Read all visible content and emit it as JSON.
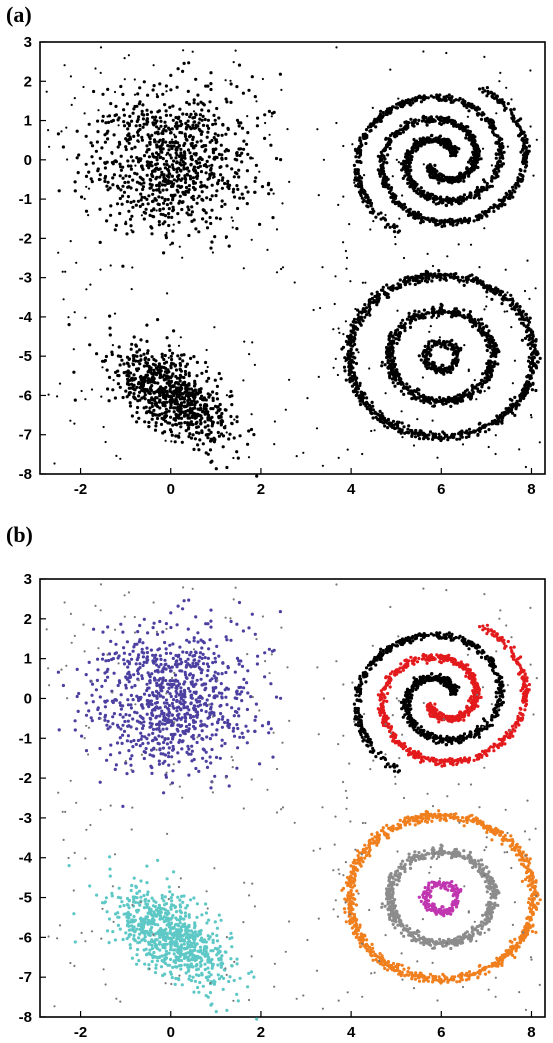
{
  "chart_data": [
    {
      "type": "scatter",
      "panel_label": "(a)",
      "xlim": [
        -2.9,
        8.3
      ],
      "ylim": [
        -8,
        3
      ],
      "xticks": [
        -2,
        0,
        2,
        4,
        6,
        8
      ],
      "yticks": [
        3,
        2,
        1,
        0,
        -1,
        -2,
        -3,
        -4,
        -5,
        -6,
        -7,
        -8
      ],
      "grid": false,
      "colors": {
        "all": "#000000",
        "axis": "#000000"
      },
      "series": [
        {
          "shape": "gaussian",
          "center": [
            0,
            0
          ],
          "std": [
            0.9,
            0.9
          ],
          "corr": 0,
          "count": 900,
          "color": "#000000"
        },
        {
          "shape": "gaussian",
          "center": [
            0,
            -6
          ],
          "std": [
            0.65,
            0.6
          ],
          "corr": -0.6,
          "count": 800,
          "color": "#000000"
        },
        {
          "shape": "spiral",
          "center": [
            6,
            0
          ],
          "a_start": 0.3,
          "a_end": 2.05,
          "turns": 1.6,
          "phase": 0.5,
          "count": 900,
          "color": "#000000"
        },
        {
          "shape": "spiral",
          "center": [
            6,
            0
          ],
          "a_start": 0.3,
          "a_end": 2.05,
          "turns": 1.6,
          "phase": 3.64,
          "count": 900,
          "color": "#000000"
        },
        {
          "shape": "ring",
          "center": [
            6,
            -5
          ],
          "radius": 0.35,
          "width": 0.1,
          "count": 180,
          "color": "#000000"
        },
        {
          "shape": "ring",
          "center": [
            6,
            -5
          ],
          "radius": 1.15,
          "width": 0.12,
          "count": 600,
          "color": "#000000"
        },
        {
          "shape": "ring",
          "center": [
            6,
            -5
          ],
          "radius": 2.05,
          "width": 0.12,
          "count": 900,
          "color": "#000000"
        },
        {
          "shape": "noise",
          "count": 300,
          "color": "#000000"
        }
      ]
    },
    {
      "type": "scatter",
      "panel_label": "(b)",
      "xlim": [
        -2.9,
        8.3
      ],
      "ylim": [
        -8,
        3
      ],
      "xticks": [
        -2,
        0,
        2,
        4,
        6,
        8
      ],
      "yticks": [
        3,
        2,
        1,
        0,
        -1,
        -2,
        -3,
        -4,
        -5,
        -6,
        -7,
        -8
      ],
      "grid": false,
      "colors": {
        "axis": "#000000"
      },
      "series": [
        {
          "shape": "gaussian",
          "center": [
            0,
            0
          ],
          "std": [
            0.9,
            0.9
          ],
          "corr": 0,
          "count": 900,
          "color": "#4b3fa0"
        },
        {
          "shape": "gaussian",
          "center": [
            0,
            -6
          ],
          "std": [
            0.65,
            0.6
          ],
          "corr": -0.6,
          "count": 800,
          "color": "#5ec8c6"
        },
        {
          "shape": "spiral",
          "center": [
            6,
            0
          ],
          "a_start": 0.3,
          "a_end": 2.05,
          "turns": 1.6,
          "phase": 0.5,
          "count": 900,
          "color": "#000000"
        },
        {
          "shape": "spiral",
          "center": [
            6,
            0
          ],
          "a_start": 0.3,
          "a_end": 2.05,
          "turns": 1.6,
          "phase": 3.64,
          "count": 900,
          "color": "#e31a1c"
        },
        {
          "shape": "ring",
          "center": [
            6,
            -5
          ],
          "radius": 0.35,
          "width": 0.1,
          "count": 180,
          "color": "#c035b0"
        },
        {
          "shape": "ring",
          "center": [
            6,
            -5
          ],
          "radius": 1.15,
          "width": 0.12,
          "count": 600,
          "color": "#8c8c8c"
        },
        {
          "shape": "ring",
          "center": [
            6,
            -5
          ],
          "radius": 2.05,
          "width": 0.12,
          "count": 900,
          "color": "#f07f1e"
        },
        {
          "shape": "noise",
          "count": 300,
          "color": "#777777"
        }
      ]
    }
  ]
}
